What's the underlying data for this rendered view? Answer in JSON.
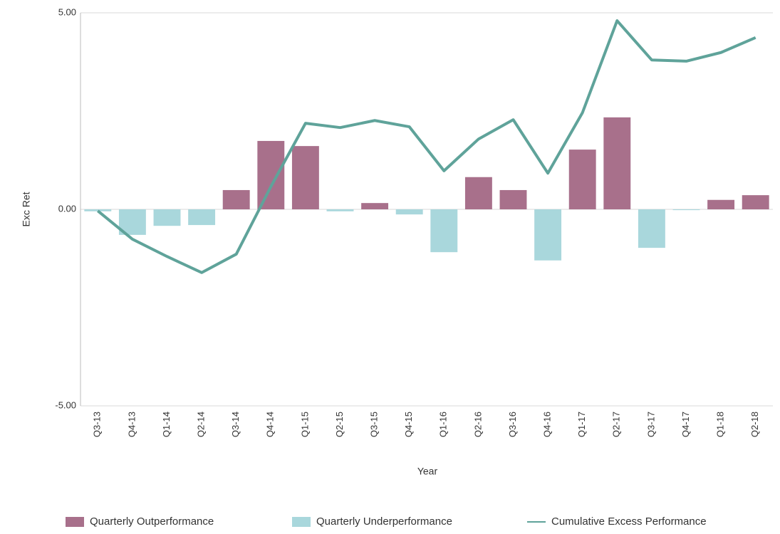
{
  "chart_data": {
    "type": "bar_line",
    "x_label": "Year",
    "y_label": "Exc Ret",
    "categories": [
      "Q3-13",
      "Q4-13",
      "Q1-14",
      "Q2-14",
      "Q3-14",
      "Q4-14",
      "Q1-15",
      "Q2-15",
      "Q3-15",
      "Q4-15",
      "Q1-16",
      "Q2-16",
      "Q3-16",
      "Q4-16",
      "Q1-17",
      "Q2-17",
      "Q3-17",
      "Q4-17",
      "Q1-18",
      "Q2-18"
    ],
    "series": [
      {
        "name": "Quarterly Outperformance",
        "type": "bar",
        "color": "#a8708b",
        "values": [
          null,
          null,
          null,
          null,
          0.49,
          1.74,
          1.61,
          null,
          0.16,
          null,
          null,
          0.82,
          0.49,
          null,
          1.52,
          2.34,
          null,
          null,
          0.24,
          0.36
        ]
      },
      {
        "name": "Quarterly Underperformance",
        "type": "bar",
        "color": "#a9d7dc",
        "values": [
          -0.05,
          -0.65,
          -0.42,
          -0.4,
          null,
          null,
          null,
          -0.05,
          null,
          -0.13,
          -1.09,
          null,
          null,
          -1.3,
          null,
          null,
          -0.98,
          -0.02,
          null,
          null
        ]
      },
      {
        "name": "Cumulative Excess Performance",
        "type": "line",
        "color": "#5fa39a",
        "values": [
          -0.04,
          -0.76,
          -1.2,
          -1.61,
          -1.14,
          0.58,
          2.19,
          2.08,
          2.26,
          2.1,
          0.98,
          1.79,
          2.28,
          0.92,
          2.46,
          4.8,
          3.8,
          3.77,
          3.99,
          4.37
        ]
      }
    ],
    "ylim": [
      -5,
      5
    ],
    "yticks": [
      {
        "value": -5,
        "label": "-5.00"
      },
      {
        "value": 0,
        "label": "0.00"
      },
      {
        "value": 5,
        "label": "5.00"
      }
    ],
    "grid": true,
    "legend": "bottom"
  }
}
